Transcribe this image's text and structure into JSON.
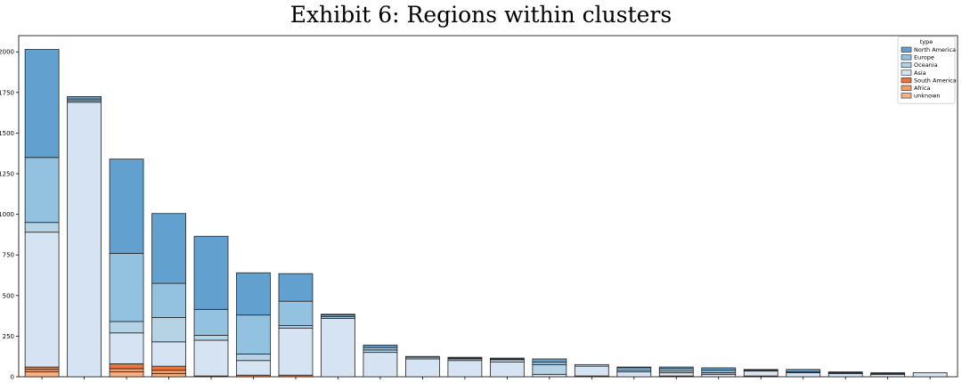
{
  "chart_data": {
    "type": "bar",
    "stacked": true,
    "title": "Exhibit 6: Regions within clusters",
    "xlabel": "",
    "ylabel": "",
    "ylim": [
      0,
      2100
    ],
    "yticks": [
      0,
      250,
      500,
      750,
      1000,
      1250,
      1500,
      1750,
      2000
    ],
    "grid": false,
    "legend": {
      "title": "type",
      "placement": "top-right"
    },
    "series": [
      {
        "name": "unknown",
        "color": "#f4b183",
        "values": [
          30,
          0,
          30,
          20,
          0,
          0,
          0,
          0,
          0,
          0,
          0,
          0,
          0,
          0,
          0,
          0,
          0,
          0,
          0,
          0,
          0,
          0
        ]
      },
      {
        "name": "Africa",
        "color": "#ef9f6a",
        "values": [
          15,
          0,
          20,
          20,
          0,
          0,
          0,
          0,
          0,
          0,
          0,
          0,
          0,
          0,
          0,
          0,
          0,
          0,
          0,
          0,
          0,
          0
        ]
      },
      {
        "name": "South America",
        "color": "#e8763c",
        "values": [
          15,
          0,
          30,
          25,
          5,
          10,
          10,
          0,
          0,
          0,
          0,
          0,
          0,
          5,
          0,
          5,
          0,
          5,
          0,
          0,
          0,
          0
        ]
      },
      {
        "name": "Asia",
        "color": "#d6e3f2",
        "values": [
          830,
          1690,
          190,
          150,
          220,
          90,
          290,
          360,
          150,
          110,
          100,
          90,
          15,
          60,
          30,
          20,
          15,
          30,
          25,
          20,
          15,
          25
        ]
      },
      {
        "name": "Oceania",
        "color": "#b6d3e6",
        "values": [
          60,
          10,
          70,
          150,
          30,
          40,
          15,
          10,
          15,
          10,
          10,
          15,
          60,
          10,
          10,
          10,
          10,
          0,
          0,
          0,
          0,
          0
        ]
      },
      {
        "name": "Europe",
        "color": "#92c2e0",
        "values": [
          400,
          10,
          420,
          210,
          160,
          240,
          150,
          10,
          15,
          5,
          5,
          5,
          15,
          0,
          15,
          15,
          15,
          5,
          5,
          5,
          5,
          0
        ]
      },
      {
        "name": "North America",
        "color": "#62a1cf",
        "values": [
          665,
          15,
          580,
          430,
          450,
          260,
          170,
          5,
          15,
          0,
          5,
          5,
          20,
          0,
          5,
          10,
          15,
          5,
          15,
          5,
          5,
          0
        ]
      }
    ],
    "legend_order": [
      "North America",
      "Europe",
      "Oceania",
      "Asia",
      "South America",
      "Africa",
      "unknown"
    ],
    "categories": [
      "",
      "",
      "",
      "",
      "",
      "",
      "",
      "",
      "",
      "",
      "",
      "",
      "",
      "",
      "",
      "",
      "",
      "",
      "",
      "",
      "",
      ""
    ]
  }
}
